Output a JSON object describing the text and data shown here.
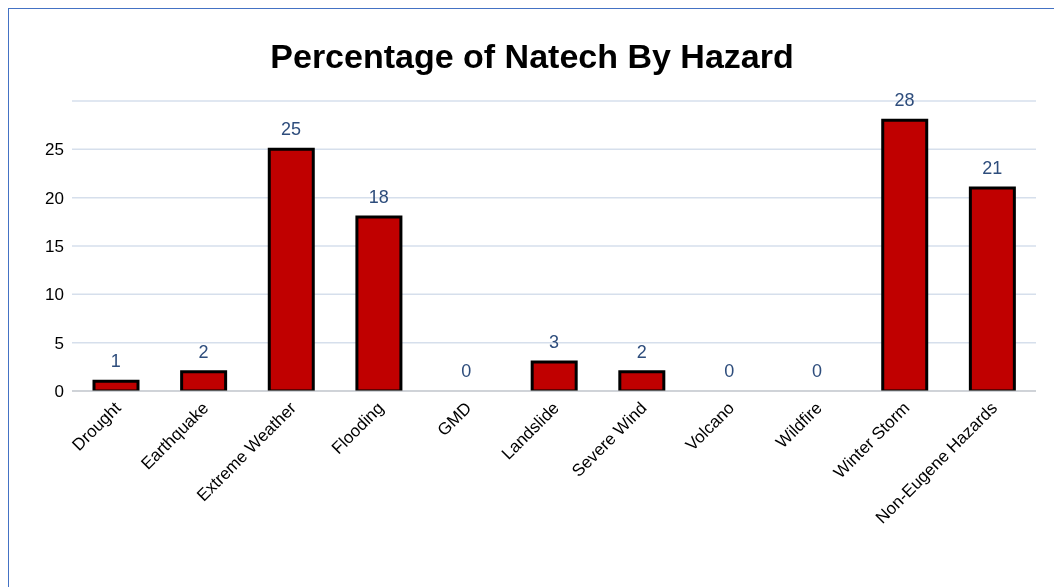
{
  "chart_data": {
    "type": "bar",
    "title": "Percentage of Natech By Hazard",
    "categories": [
      "Drought",
      "Earthquake",
      "Extreme Weather",
      "Flooding",
      "GMD",
      "Landslide",
      "Severe Wind",
      "Volcano",
      "Wildfire",
      "Winter Storm",
      "Non-Eugene Hazards"
    ],
    "values": [
      1,
      2,
      25,
      18,
      0,
      3,
      2,
      0,
      0,
      28,
      21
    ],
    "color": "#c00000",
    "ylim": [
      0,
      30
    ],
    "yticks": [
      0,
      5,
      10,
      15,
      20,
      25
    ],
    "grid": "y",
    "data_labels": true,
    "legend": false
  }
}
